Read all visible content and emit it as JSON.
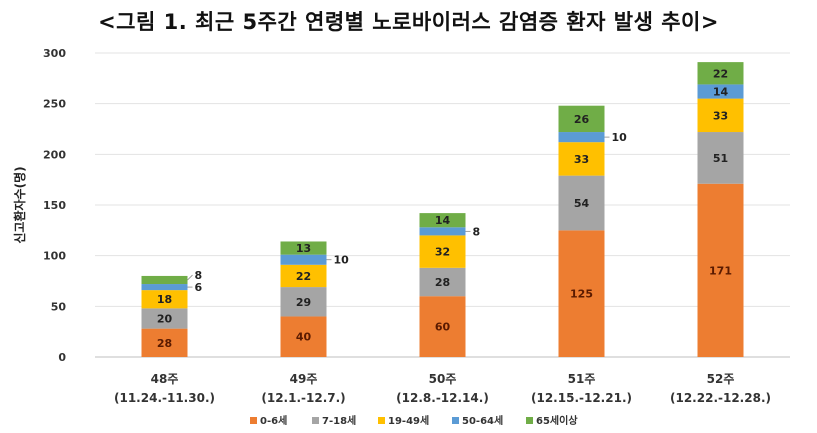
{
  "chart_data": {
    "type": "bar",
    "stacked": true,
    "title": "<그림 1. 최근 5주간 연령별 노로바이러스 감염증 환자 발생 추이>",
    "xlabel": "",
    "ylabel": "신고환자수(명)",
    "ylim": [
      0,
      300
    ],
    "yticks": [
      0,
      50,
      100,
      150,
      200,
      250,
      300
    ],
    "grid": true,
    "legend_position": "bottom",
    "categories": [
      {
        "week": "48주",
        "range": "(11.24.-11.30.)"
      },
      {
        "week": "49주",
        "range": "(12.1.-12.7.)"
      },
      {
        "week": "50주",
        "range": "(12.8.-12.14.)"
      },
      {
        "week": "51주",
        "range": "(12.15.-12.21.)"
      },
      {
        "week": "52주",
        "range": "(12.22.-12.28.)"
      }
    ],
    "series": [
      {
        "name": "0-6세",
        "color": "#ED7D31",
        "label_color": "#5a1a00",
        "values": [
          28,
          40,
          60,
          125,
          171
        ]
      },
      {
        "name": "7-18세",
        "color": "#A5A5A5",
        "label_color": "#222222",
        "values": [
          20,
          29,
          28,
          54,
          51
        ]
      },
      {
        "name": "19-49세",
        "color": "#FFC000",
        "label_color": "#222222",
        "values": [
          18,
          22,
          32,
          33,
          33
        ]
      },
      {
        "name": "50-64세",
        "color": "#5B9BD5",
        "label_color": "#222222",
        "values": [
          6,
          10,
          8,
          10,
          14
        ]
      },
      {
        "name": "65세이상",
        "color": "#70AD47",
        "label_color": "#222222",
        "values": [
          8,
          13,
          14,
          26,
          22
        ]
      }
    ]
  }
}
